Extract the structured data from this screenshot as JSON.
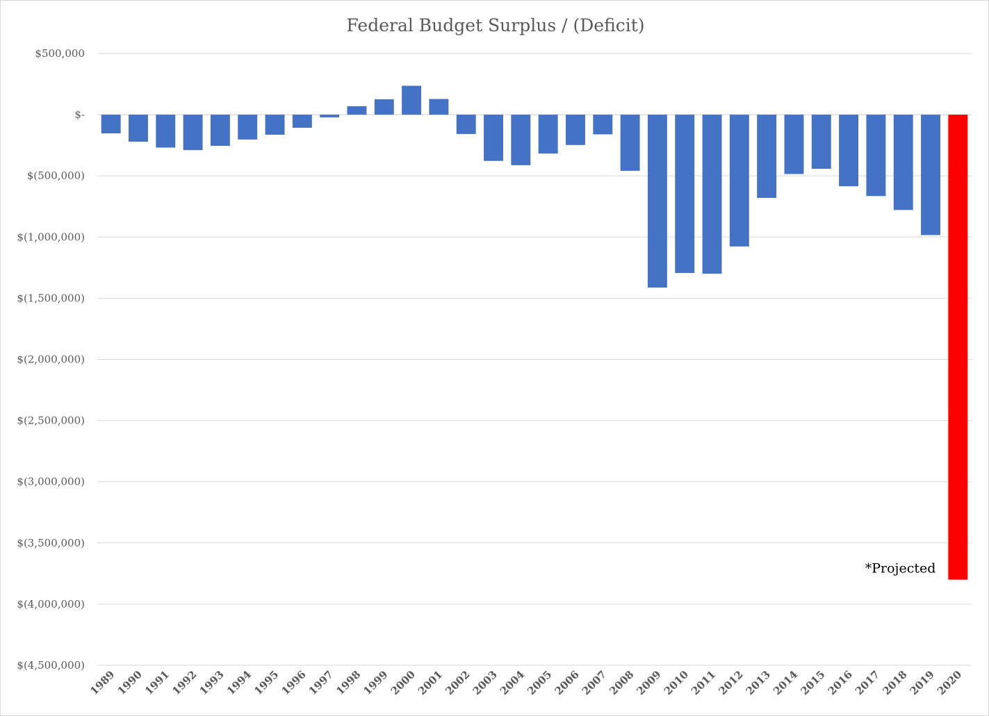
{
  "chart_data": {
    "type": "bar",
    "title": "Federal Budget Surplus / (Deficit)",
    "xlabel": "",
    "ylabel": "",
    "ylim": [
      -4500000,
      500000
    ],
    "yticks": [
      500000,
      0,
      -500000,
      -1000000,
      -1500000,
      -2000000,
      -2500000,
      -3000000,
      -3500000,
      -4000000,
      -4500000
    ],
    "ytick_labels": [
      "$500,000",
      "$-",
      "$(500,000)",
      "$(1,000,000)",
      "$(1,500,000)",
      "$(2,000,000)",
      "$(2,500,000)",
      "$(3,000,000)",
      "$(3,500,000)",
      "$(4,000,000)",
      "$(4,500,000)"
    ],
    "grid": true,
    "legend": "none",
    "categories": [
      "1989",
      "1990",
      "1991",
      "1992",
      "1993",
      "1994",
      "1995",
      "1996",
      "1997",
      "1998",
      "1999",
      "2000",
      "2001",
      "2002",
      "2003",
      "2004",
      "2005",
      "2006",
      "2007",
      "2008",
      "2009",
      "2010",
      "2011",
      "2012",
      "2013",
      "2014",
      "2015",
      "2016",
      "2017",
      "2018",
      "2019",
      "2020"
    ],
    "values": [
      -153000,
      -221000,
      -269000,
      -290000,
      -255000,
      -203000,
      -164000,
      -107000,
      -22000,
      69000,
      126000,
      236000,
      128000,
      -158000,
      -378000,
      -413000,
      -318000,
      -248000,
      -161000,
      -459000,
      -1413000,
      -1294000,
      -1300000,
      -1077000,
      -680000,
      -485000,
      -442000,
      -585000,
      -665000,
      -779000,
      -984000,
      -3800000
    ],
    "bar_colors": {
      "default": "#4472c4",
      "projected": "#ff0000"
    },
    "projected_category": "2020",
    "annotations": [
      {
        "text": "*Projected",
        "category": "2020"
      }
    ]
  }
}
